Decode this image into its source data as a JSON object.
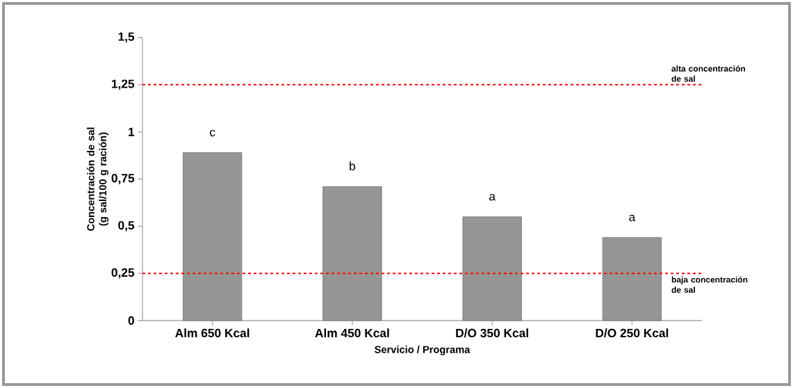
{
  "chart_data": {
    "type": "bar",
    "xlabel": "Servicio / Programa",
    "ylabel": "Concentración de sal (g sal/100 g ración)",
    "categories": [
      "Alm 650 Kcal",
      "Alm 450 Kcal",
      "D/O 350 Kcal",
      "D/O 250 Kcal"
    ],
    "values": [
      0.89,
      0.71,
      0.55,
      0.44
    ],
    "color": "#969696",
    "ylim": [
      0,
      1.5
    ],
    "yticks": [
      {
        "value": 0,
        "label": "0"
      },
      {
        "value": 0.25,
        "label": "0,25"
      },
      {
        "value": 0.5,
        "label": "0,5"
      },
      {
        "value": 0.75,
        "label": "0,75"
      },
      {
        "value": 1,
        "label": "1"
      },
      {
        "value": 1.25,
        "label": "1,25"
      },
      {
        "value": 1.5,
        "label": "1,5"
      }
    ],
    "ref_lines": [
      {
        "axis": "y",
        "value": 1.25,
        "label": "alta concentración de sal",
        "color": "#ff0000",
        "line_style": "dashed"
      },
      {
        "axis": "y",
        "value": 0.25,
        "label": "baja concentración de sal",
        "color": "#ff0000",
        "line_style": "dashed"
      }
    ],
    "annotations": [
      {
        "text": "c",
        "x": "Alm 650 Kcal",
        "y": 0.89
      },
      {
        "text": "b",
        "x": "Alm 450 Kcal",
        "y": 0.71
      },
      {
        "text": "a",
        "x": "D/O 350 Kcal",
        "y": 0.55
      },
      {
        "text": "a",
        "x": "D/O 250 Kcal",
        "y": 0.44
      }
    ],
    "grid": false
  }
}
